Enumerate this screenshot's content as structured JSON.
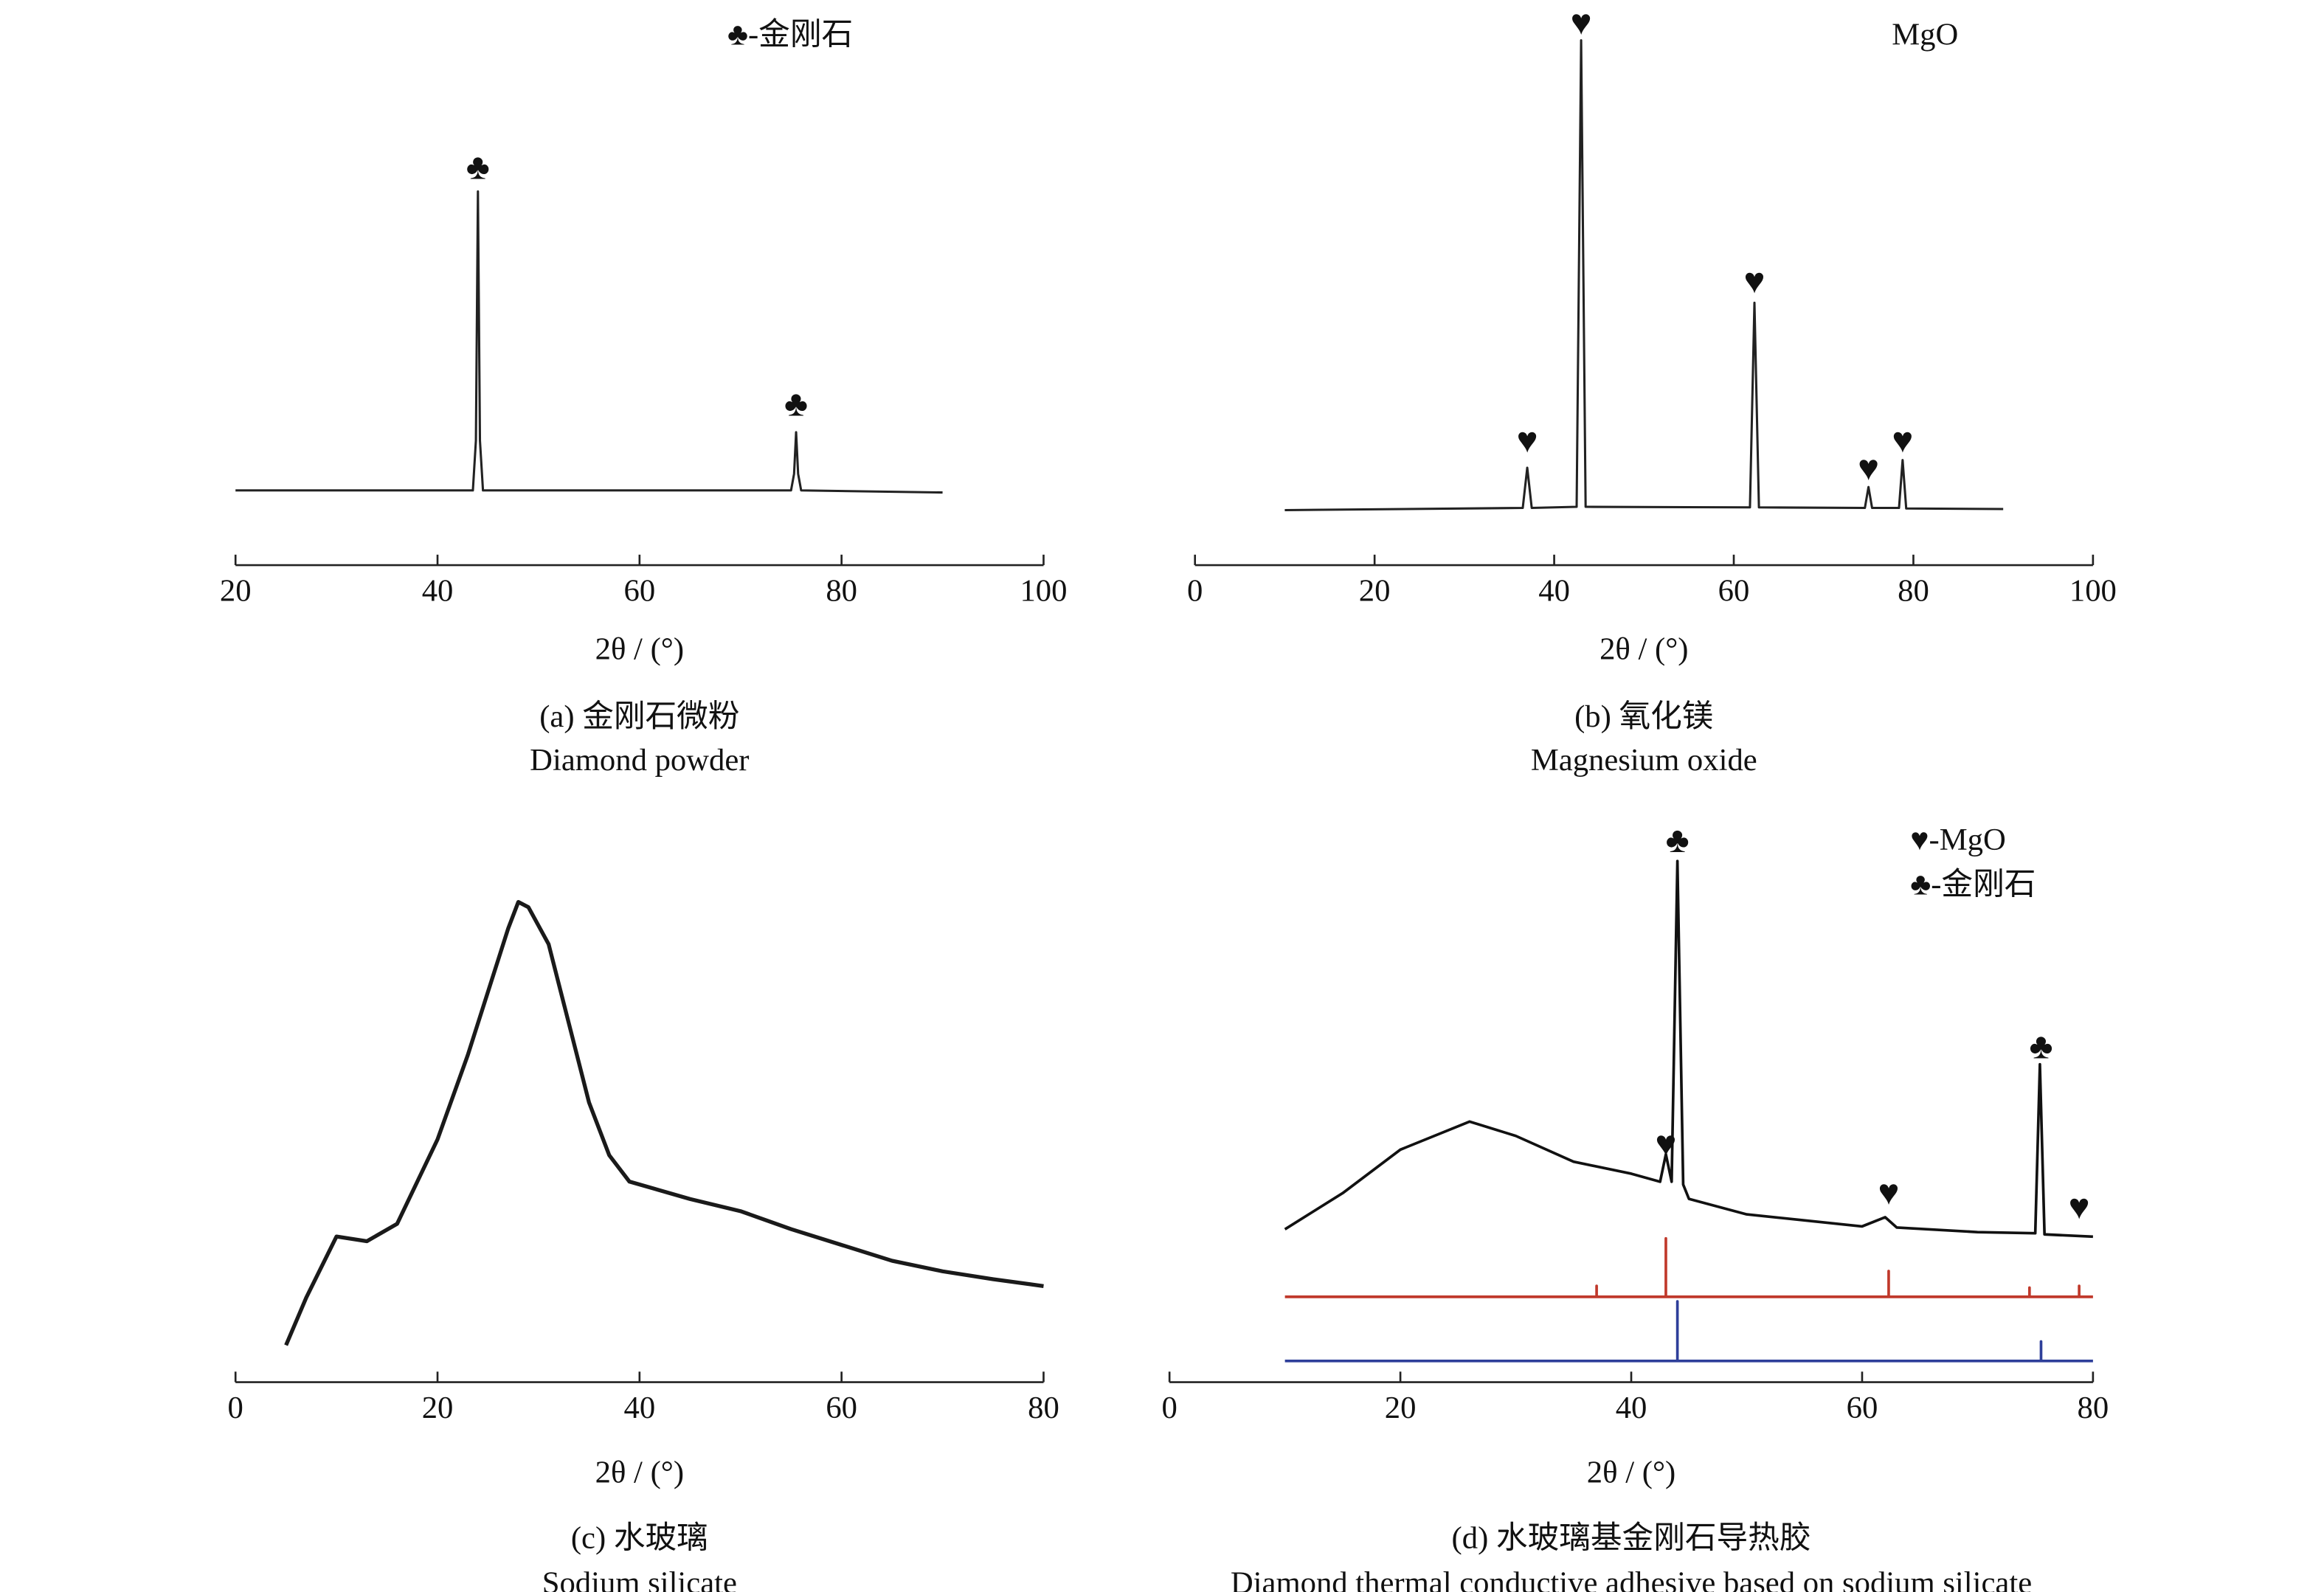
{
  "chart_data": [
    {
      "type": "line",
      "xlabel": "2θ / (°)",
      "caption": "(a) 金刚石微粉",
      "subcaption": "Diamond powder",
      "legend": [
        "♣-金刚石"
      ],
      "xlim": [
        20,
        100
      ],
      "xticks": [
        20,
        40,
        60,
        80,
        100
      ],
      "ylim": [
        0,
        100
      ],
      "series": [
        {
          "color": "#222222",
          "x": [
            20,
            43.5,
            43.8,
            44,
            44.2,
            44.5,
            75,
            75.3,
            75.5,
            75.7,
            76,
            90
          ],
          "values": [
            18,
            18,
            30,
            90,
            30,
            18,
            18,
            22,
            32,
            22,
            18,
            17.5
          ]
        }
      ],
      "annotations": [
        {
          "text": "♣",
          "x": 44,
          "y": 95
        },
        {
          "text": "♣",
          "x": 75.5,
          "y": 38
        }
      ]
    },
    {
      "type": "line",
      "xlabel": "2θ / (°)",
      "caption": "(b) 氧化镁",
      "subcaption": "Magnesium oxide",
      "legend": [
        "MgO"
      ],
      "xlim": [
        0,
        100
      ],
      "xticks": [
        0,
        20,
        40,
        60,
        80,
        100
      ],
      "ylim": [
        0,
        100
      ],
      "series": [
        {
          "color": "#222222",
          "x": [
            10,
            36.5,
            37,
            37.5,
            42.5,
            43,
            43.5,
            61.8,
            62.3,
            62.8,
            74.6,
            75,
            75.4,
            78.4,
            78.8,
            79.2,
            90
          ],
          "values": [
            10,
            10.4,
            17.7,
            10.4,
            10.6,
            95.4,
            10.6,
            10.5,
            47.7,
            10.5,
            10.4,
            14.2,
            10.4,
            10.4,
            19.1,
            10.3,
            10.2
          ]
        }
      ],
      "annotations": [
        {
          "text": "♥",
          "x": 37,
          "y": 22
        },
        {
          "text": "♥",
          "x": 43,
          "y": 98
        },
        {
          "text": "♥",
          "x": 62.3,
          "y": 51
        },
        {
          "text": "♥",
          "x": 75,
          "y": 17
        },
        {
          "text": "♥",
          "x": 78.8,
          "y": 22
        }
      ]
    },
    {
      "type": "line",
      "xlabel": "2θ / (°)",
      "caption": "(c) 水玻璃",
      "subcaption": "Sodium silicate",
      "legend": [],
      "xlim": [
        0,
        80
      ],
      "xticks": [
        0,
        20,
        40,
        60,
        80
      ],
      "ylim": [
        0,
        100
      ],
      "series": [
        {
          "color": "#1a1a1a",
          "x": [
            5,
            7,
            10,
            13,
            16,
            20,
            23,
            25,
            27,
            28,
            29,
            31,
            33,
            35,
            37,
            39,
            45,
            50,
            55,
            60,
            65,
            70,
            75,
            80
          ],
          "values": [
            7,
            16,
            27.6,
            26.7,
            30,
            46,
            62,
            74,
            86,
            91,
            90,
            83,
            68,
            53,
            43,
            38,
            34.7,
            32.4,
            29,
            26,
            23,
            21,
            19.5,
            18.2
          ]
        }
      ],
      "annotations": []
    },
    {
      "type": "line",
      "xlabel": "2θ / (°)",
      "caption": "(d) 水玻璃基金刚石导热胶",
      "subcaption": "Diamond thermal conductive adhesive based on sodium silicate",
      "legend": [
        "♥-MgO",
        "♣-金刚石"
      ],
      "xlim": [
        0,
        80
      ],
      "xticks": [
        0,
        20,
        40,
        60,
        80
      ],
      "ylim": [
        0,
        100
      ],
      "series": [
        {
          "color": "#111111",
          "x": [
            10,
            15,
            20,
            26,
            30,
            35,
            40,
            42.5,
            43,
            43.5,
            44,
            44.5,
            45,
            50,
            60,
            62,
            63,
            70,
            75,
            75.4,
            75.8,
            80
          ],
          "values": [
            26.7,
            33,
            40.6,
            45.5,
            43,
            38.5,
            36.4,
            35,
            39.8,
            35,
            91,
            34.5,
            32,
            29.3,
            27.2,
            28.8,
            27,
            26.2,
            26,
            55.5,
            25.8,
            25.4
          ]
        },
        {
          "color": "#c0392b",
          "x": [
            10,
            37,
            37,
            37,
            43,
            43,
            43,
            62.3,
            62.3,
            62.3,
            74.5,
            74.5,
            74.5,
            78.8,
            78.8,
            78.8,
            80
          ],
          "values": [
            14.9,
            14.9,
            16.8,
            14.9,
            14.9,
            25.1,
            14.9,
            14.9,
            19.4,
            14.9,
            14.9,
            16.5,
            14.9,
            14.9,
            16.8,
            14.9,
            14.9
          ]
        },
        {
          "color": "#2e3f9a",
          "x": [
            10,
            44,
            44,
            44,
            75.5,
            75.5,
            75.5,
            80
          ],
          "values": [
            3.7,
            3.7,
            14.1,
            3.7,
            3.7,
            7.1,
            3.7,
            3.7
          ]
        }
      ],
      "annotations": [
        {
          "text": "♥",
          "x": 43,
          "y": 41
        },
        {
          "text": "♣",
          "x": 44,
          "y": 94
        },
        {
          "text": "♥",
          "x": 62.3,
          "y": 32.5
        },
        {
          "text": "♣",
          "x": 75.5,
          "y": 58
        },
        {
          "text": "♥",
          "x": 78.8,
          "y": 30
        }
      ]
    }
  ]
}
